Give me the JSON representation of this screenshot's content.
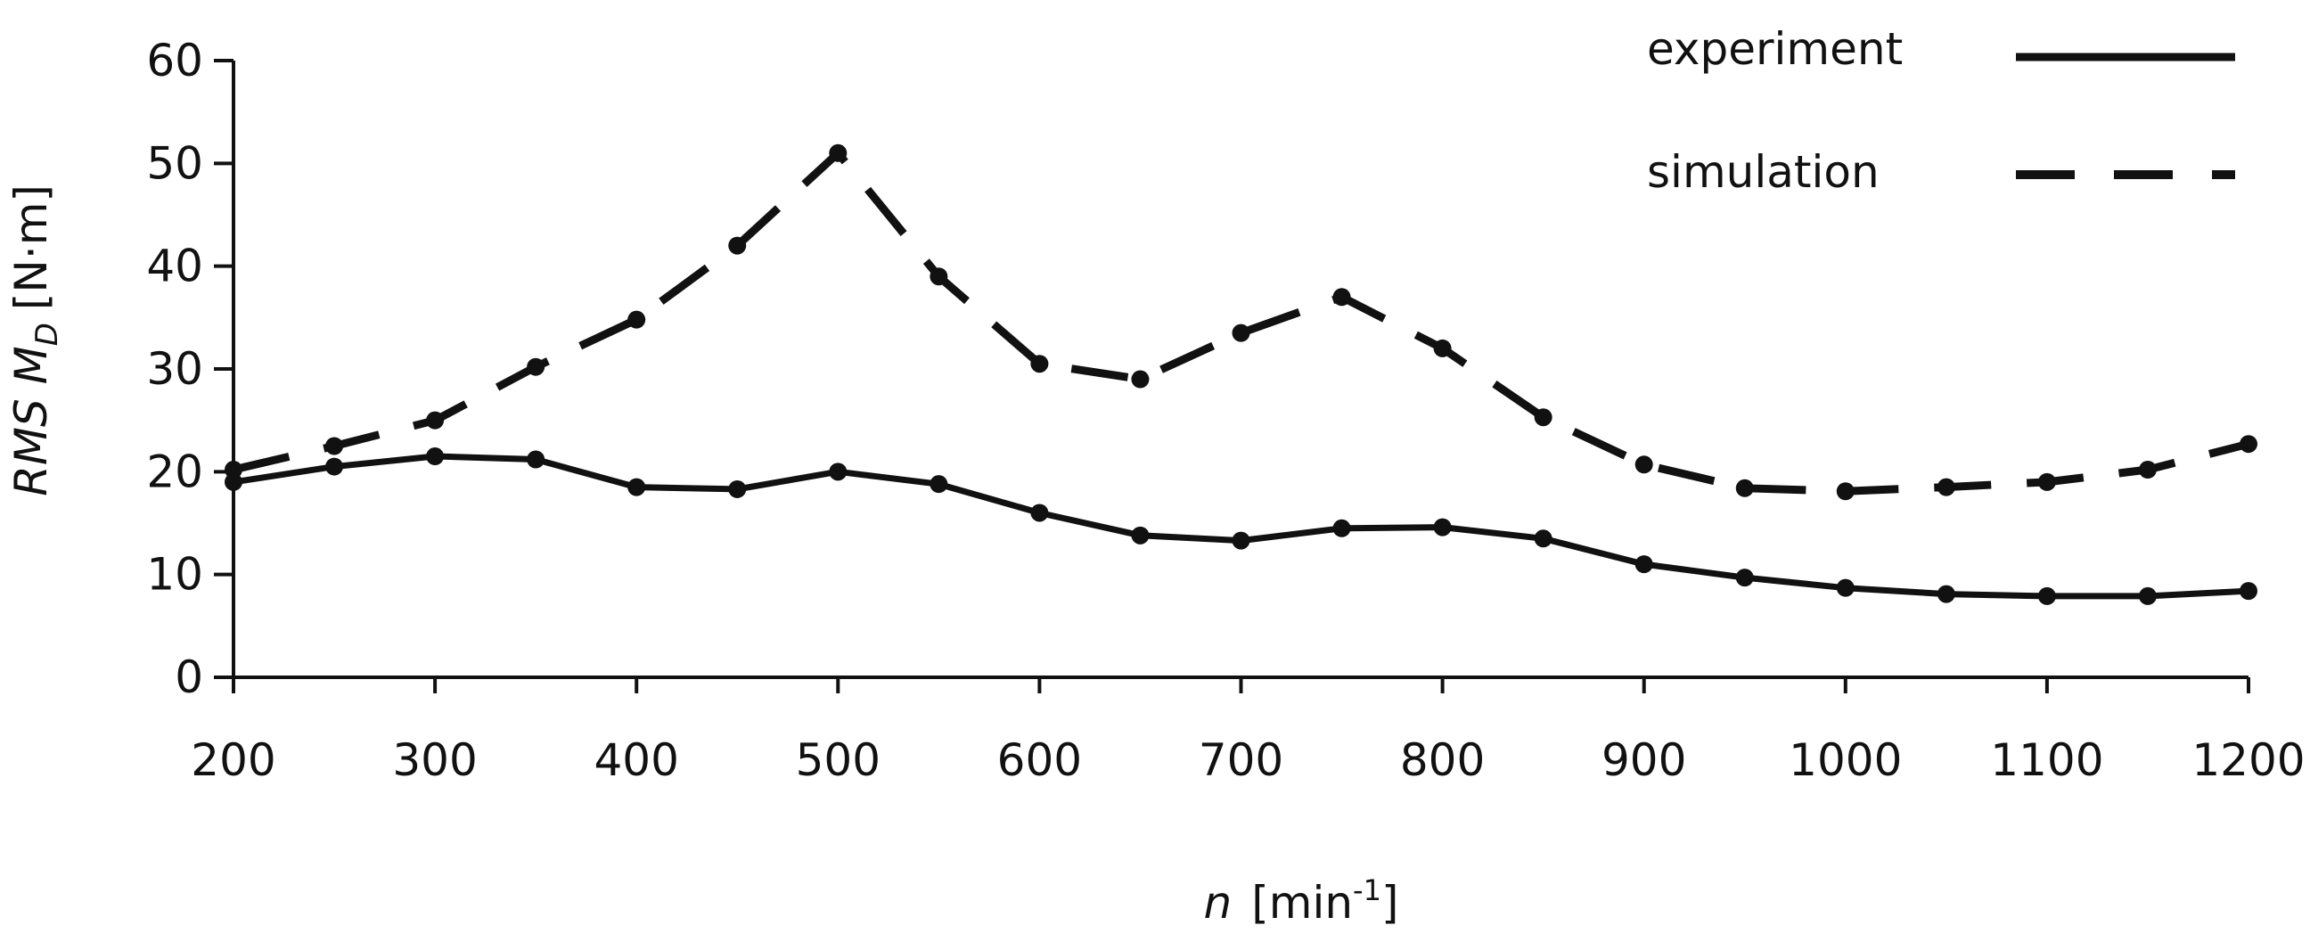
{
  "chart_data": {
    "type": "line",
    "title": "",
    "xlabel": {
      "var": "n",
      "unit_prefix": "[min",
      "unit_exp": "-1",
      "unit_suffix": "]"
    },
    "ylabel": {
      "var": "RMS M",
      "sub": "D",
      "unit": "[N·m]"
    },
    "xlim": [
      200,
      1200
    ],
    "ylim": [
      0,
      60
    ],
    "x_ticks": [
      200,
      300,
      400,
      500,
      600,
      700,
      800,
      900,
      1000,
      1100,
      1200
    ],
    "y_ticks": [
      0,
      10,
      20,
      30,
      40,
      50,
      60
    ],
    "grid": false,
    "legend_position": "top-right",
    "x": [
      200,
      250,
      300,
      350,
      400,
      450,
      500,
      550,
      600,
      650,
      700,
      750,
      800,
      850,
      900,
      950,
      1000,
      1050,
      1100,
      1150,
      1200
    ],
    "series": [
      {
        "name": "experiment",
        "line_style": "solid",
        "values": [
          19.0,
          20.5,
          21.5,
          21.2,
          18.5,
          18.3,
          20.0,
          18.8,
          16.0,
          13.8,
          13.3,
          14.5,
          14.6,
          13.5,
          11.0,
          9.7,
          8.7,
          8.1,
          7.9,
          7.9,
          8.4
        ]
      },
      {
        "name": "simulation",
        "line_style": "dashed",
        "values": [
          20.2,
          22.5,
          25.0,
          30.2,
          34.8,
          42.0,
          51.0,
          39.0,
          30.5,
          29.0,
          33.5,
          37.0,
          32.0,
          25.3,
          20.7,
          18.4,
          18.1,
          18.5,
          19.0,
          20.2,
          22.7
        ]
      }
    ],
    "colors": {
      "line": "#111111",
      "axis": "#111111"
    }
  }
}
